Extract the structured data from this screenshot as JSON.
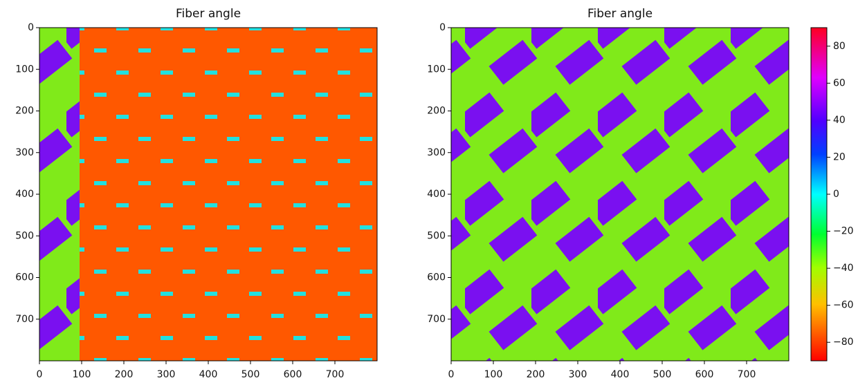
{
  "chart_data": [
    {
      "type": "image",
      "title": "Fiber angle",
      "xlim": [
        0,
        800
      ],
      "ylim": [
        800,
        0
      ],
      "xticks": [
        0,
        100,
        200,
        300,
        400,
        500,
        600,
        700
      ],
      "yticks": [
        0,
        100,
        200,
        300,
        400,
        500,
        600,
        700
      ]
    },
    {
      "type": "image",
      "title": "Fiber angle",
      "xlim": [
        0,
        800
      ],
      "ylim": [
        800,
        0
      ],
      "xticks": [
        0,
        100,
        200,
        300,
        400,
        500,
        600,
        700
      ],
      "yticks": [
        0,
        100,
        200,
        300,
        400,
        500,
        600,
        700
      ],
      "colorbar": {
        "lim": [
          -90,
          90
        ],
        "ticks": [
          {
            "value": -80,
            "label": "−80"
          },
          {
            "value": -60,
            "label": "−60"
          },
          {
            "value": -40,
            "label": "−40"
          },
          {
            "value": -20,
            "label": "−20"
          },
          0,
          20,
          40,
          60,
          80
        ]
      }
    }
  ]
}
